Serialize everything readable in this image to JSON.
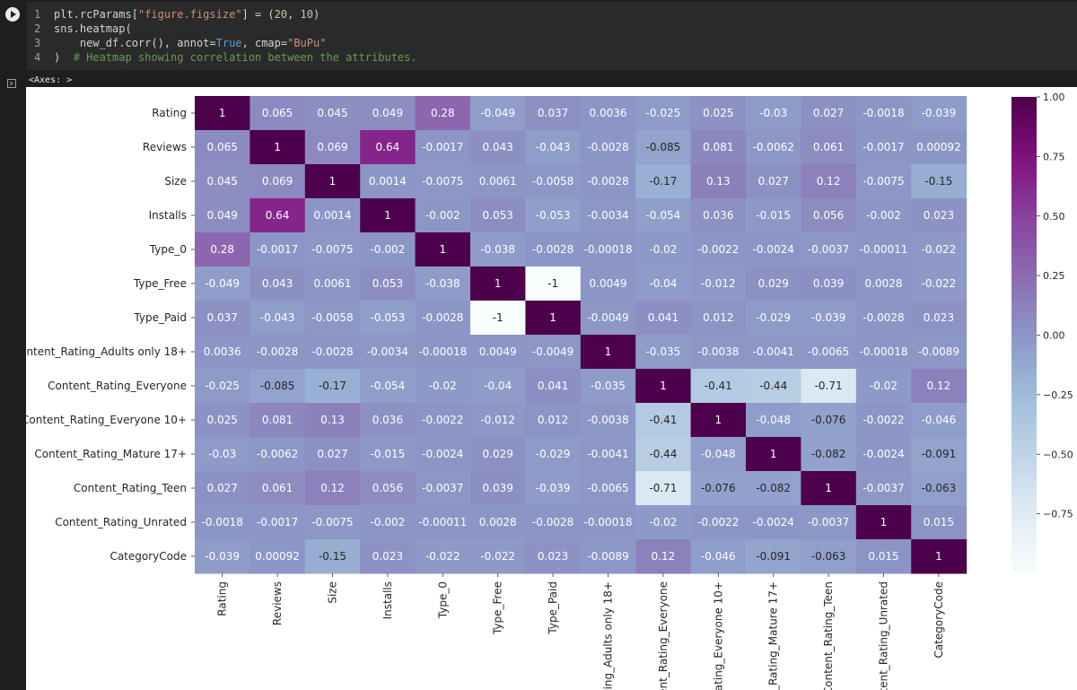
{
  "code": {
    "lines": [
      {
        "num": "1",
        "tokens": [
          [
            "",
            "plt.rcParams["
          ],
          [
            "s",
            "\"figure.figsize\""
          ],
          [
            "",
            "] = ("
          ],
          [
            "n",
            "20"
          ],
          [
            "",
            ", "
          ],
          [
            "n",
            "10"
          ],
          [
            "",
            ")"
          ]
        ]
      },
      {
        "num": "2",
        "tokens": [
          [
            "",
            "sns.heatmap("
          ]
        ]
      },
      {
        "num": "3",
        "tokens": [
          [
            "",
            "    new_df.corr(), annot="
          ],
          [
            "k",
            "True"
          ],
          [
            "",
            ", cmap="
          ],
          [
            "s",
            "\"BuPu\""
          ]
        ]
      },
      {
        "num": "4",
        "tokens": [
          [
            "",
            ")  "
          ],
          [
            "c",
            "# Heatmap showing correlation between the attributes."
          ]
        ]
      }
    ]
  },
  "output": {
    "text": "<Axes: >"
  },
  "chart_data": {
    "type": "heatmap",
    "cmap": "BuPu",
    "labels": [
      "Rating",
      "Reviews",
      "Size",
      "Installs",
      "Type_0",
      "Type_Free",
      "Type_Paid",
      "Content_Rating_Adults only 18+",
      "Content_Rating_Everyone",
      "Content_Rating_Everyone 10+",
      "Content_Rating_Mature 17+",
      "Content_Rating_Teen",
      "Content_Rating_Unrated",
      "CategoryCode"
    ],
    "x_tick_labels_shown": [
      "Rating",
      "Reviews",
      "Size",
      "Installs",
      "Type_0",
      "Type_Free",
      "Type_Paid",
      "Rating_Adults only 18+",
      "ntent_Rating_Everyone",
      "_Rating_Everyone 10+",
      "ent_Rating_Mature 17+",
      "Content_Rating_Teen",
      "ntent_Rating_Unrated",
      "CategoryCode"
    ],
    "values": [
      [
        1,
        0.065,
        0.045,
        0.049,
        0.28,
        -0.049,
        0.037,
        0.0036,
        -0.025,
        0.025,
        -0.03,
        0.027,
        -0.0018,
        -0.039
      ],
      [
        0.065,
        1,
        0.069,
        0.64,
        -0.0017,
        0.043,
        -0.043,
        -0.0028,
        -0.085,
        0.081,
        -0.0062,
        0.061,
        -0.0017,
        0.00092
      ],
      [
        0.045,
        0.069,
        1,
        0.0014,
        -0.0075,
        0.0061,
        -0.0058,
        -0.0028,
        -0.17,
        0.13,
        0.027,
        0.12,
        -0.0075,
        -0.15
      ],
      [
        0.049,
        0.64,
        0.0014,
        1,
        -0.002,
        0.053,
        -0.053,
        -0.0034,
        -0.054,
        0.036,
        -0.015,
        0.056,
        -0.002,
        0.023
      ],
      [
        0.28,
        -0.0017,
        -0.0075,
        -0.002,
        1,
        -0.038,
        -0.0028,
        -0.00018,
        -0.02,
        -0.0022,
        -0.0024,
        -0.0037,
        -0.00011,
        -0.022
      ],
      [
        -0.049,
        0.043,
        0.0061,
        0.053,
        -0.038,
        1,
        -1,
        0.0049,
        -0.04,
        -0.012,
        0.029,
        0.039,
        0.0028,
        -0.022
      ],
      [
        0.037,
        -0.043,
        -0.0058,
        -0.053,
        -0.0028,
        -1,
        1,
        -0.0049,
        0.041,
        0.012,
        -0.029,
        -0.039,
        -0.0028,
        0.023
      ],
      [
        0.0036,
        -0.0028,
        -0.0028,
        -0.0034,
        -0.00018,
        0.0049,
        -0.0049,
        1,
        -0.035,
        -0.0038,
        -0.0041,
        -0.0065,
        -0.00018,
        -0.0089
      ],
      [
        -0.025,
        -0.085,
        -0.17,
        -0.054,
        -0.02,
        -0.04,
        0.041,
        -0.035,
        1,
        -0.41,
        -0.44,
        -0.71,
        -0.02,
        0.12
      ],
      [
        0.025,
        0.081,
        0.13,
        0.036,
        -0.0022,
        -0.012,
        0.012,
        -0.0038,
        -0.41,
        1,
        -0.048,
        -0.076,
        -0.0022,
        -0.046
      ],
      [
        -0.03,
        -0.0062,
        0.027,
        -0.015,
        -0.0024,
        0.029,
        -0.029,
        -0.0041,
        -0.44,
        -0.048,
        1,
        -0.082,
        -0.0024,
        -0.091
      ],
      [
        0.027,
        0.061,
        0.12,
        0.056,
        -0.0037,
        0.039,
        -0.039,
        -0.0065,
        -0.71,
        -0.076,
        -0.082,
        1,
        -0.0037,
        -0.063
      ],
      [
        -0.0018,
        -0.0017,
        -0.0075,
        -0.002,
        -0.00011,
        0.0028,
        -0.0028,
        -0.00018,
        -0.02,
        -0.0022,
        -0.0024,
        -0.0037,
        1,
        0.015
      ],
      [
        -0.039,
        0.00092,
        -0.15,
        0.023,
        -0.022,
        -0.022,
        0.023,
        -0.0089,
        0.12,
        -0.046,
        -0.091,
        -0.063,
        0.015,
        1
      ]
    ],
    "colorbar_ticks": [
      "1.00",
      "0.75",
      "0.50",
      "0.25",
      "0.00",
      "−0.25",
      "−0.50",
      "−0.75"
    ],
    "colorbar_tick_values": [
      1.0,
      0.75,
      0.5,
      0.25,
      0.0,
      -0.25,
      -0.5,
      -0.75
    ],
    "vmin": -1,
    "vmax": 1
  }
}
